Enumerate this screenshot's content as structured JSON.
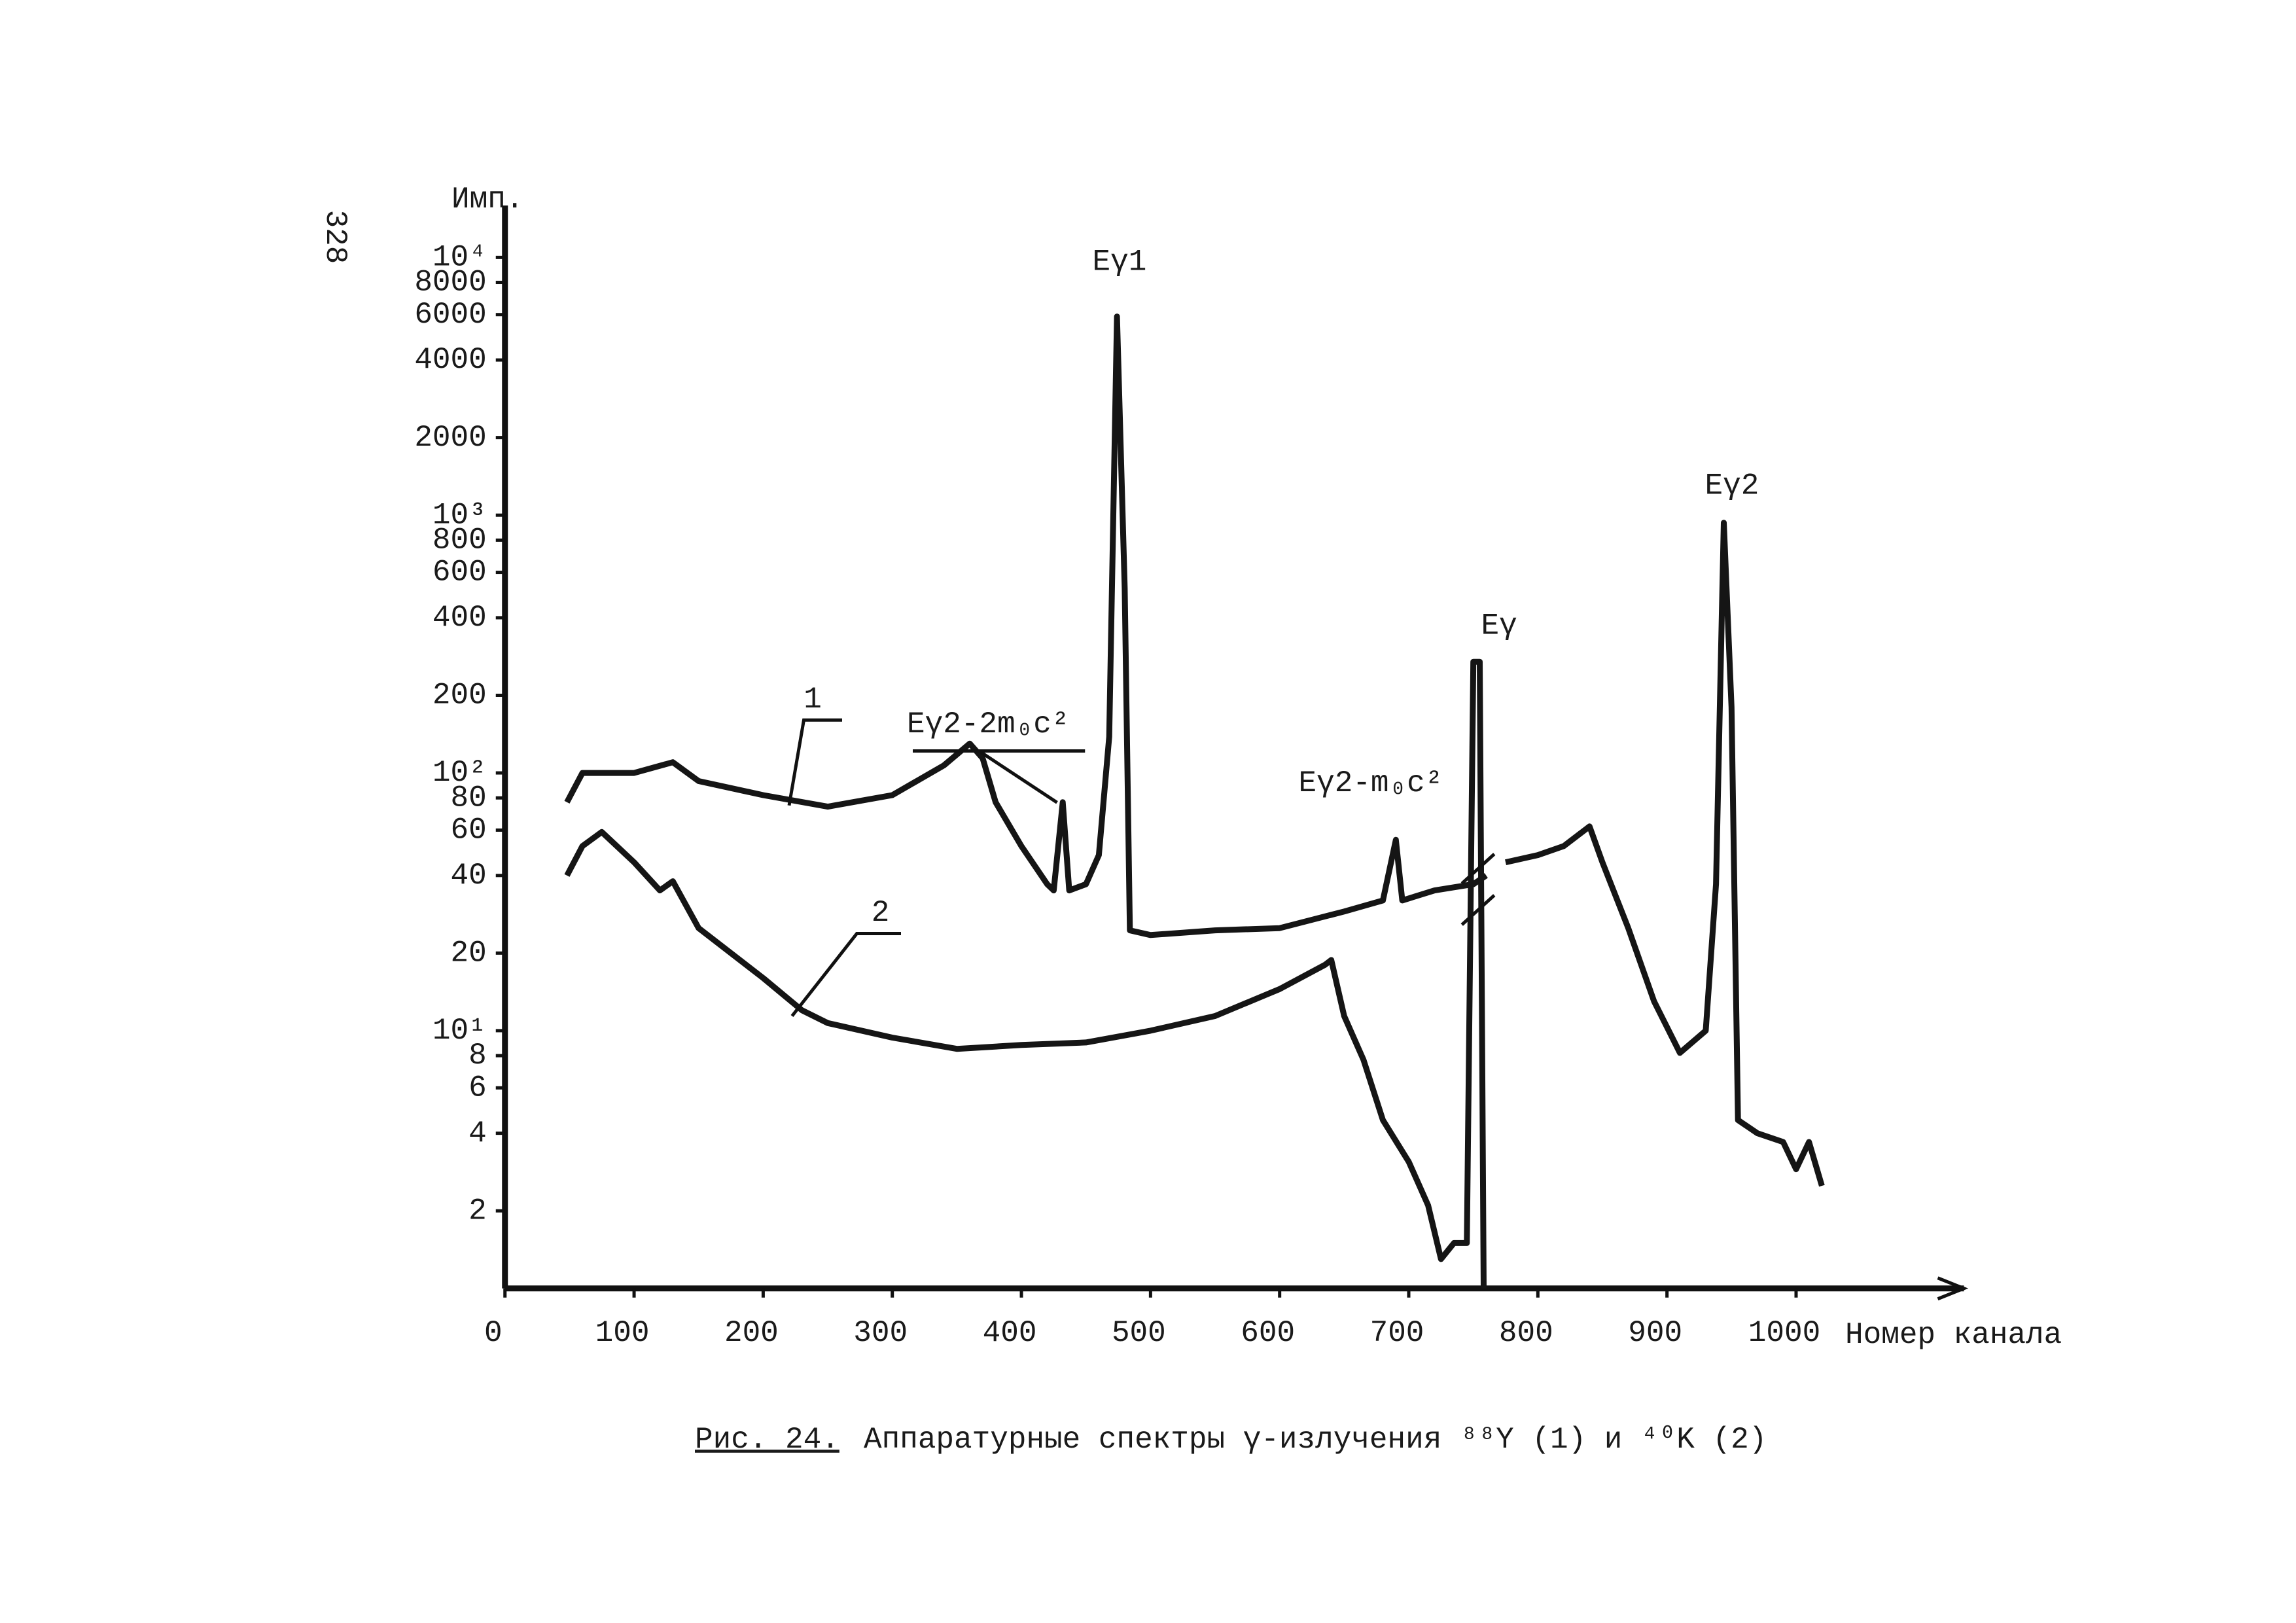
{
  "page_number": "328",
  "chart_data": {
    "type": "line",
    "y_label": "Имп.",
    "x_label": "Номер канала",
    "figure_label": "Рис. 24.",
    "caption": "Аппаратурные спектры γ-излучения ⁸⁸Y (1) и ⁴⁰K (2)",
    "log_y": true,
    "grid": false,
    "xlim": [
      0,
      1130
    ],
    "ylim": [
      1,
      15000
    ],
    "xticks": [
      0,
      100,
      200,
      300,
      400,
      500,
      600,
      700,
      800,
      900,
      1000
    ],
    "yticks": [
      2,
      4,
      6,
      8,
      {
        "value": 10,
        "label": "10¹"
      },
      20,
      40,
      60,
      80,
      {
        "value": 100,
        "label": "10²"
      },
      200,
      400,
      600,
      800,
      {
        "value": 1000,
        "label": "10³"
      },
      2000,
      4000,
      6000,
      8000,
      {
        "value": 10000,
        "label": "10⁴"
      }
    ],
    "annotations": [
      "Eγ1",
      "Eγ2-2m₀c²",
      "Eγ2-m₀c²",
      "Eγ",
      "Eγ2"
    ],
    "series": [
      {
        "name": "1",
        "color": "#151515",
        "x": [
          48,
          60,
          100,
          130,
          150,
          200,
          250,
          300,
          340,
          360,
          370,
          380,
          400,
          420,
          425,
          432,
          437,
          450,
          460,
          468,
          474,
          480,
          484,
          500,
          550,
          600,
          650,
          680,
          690,
          695,
          720,
          750,
          760,
          768,
          775,
          800,
          820,
          840,
          850,
          870,
          890,
          910,
          930,
          938,
          944,
          950,
          955,
          970,
          990,
          1000,
          1010,
          1020
        ],
        "values": [
          77,
          100,
          100,
          110,
          93,
          82,
          74,
          82,
          107,
          130,
          114,
          77,
          52,
          37,
          35,
          77,
          35,
          37,
          48,
          138,
          5900,
          520,
          24.5,
          23.5,
          24.5,
          25,
          29,
          32,
          55,
          32,
          35,
          37,
          40,
          null,
          45,
          48,
          52,
          62,
          45,
          25,
          13,
          8.2,
          10,
          37,
          935,
          180,
          4.5,
          4.0,
          3.7,
          2.9,
          3.7,
          2.5
        ]
      },
      {
        "name": "2",
        "color": "#151515",
        "x": [
          48,
          60,
          75,
          100,
          120,
          130,
          150,
          200,
          230,
          250,
          300,
          350,
          400,
          450,
          500,
          550,
          600,
          635,
          640,
          650,
          665,
          680,
          700,
          715,
          725,
          735,
          745,
          750,
          755,
          758
        ],
        "values": [
          40,
          52,
          59,
          45,
          35,
          38,
          25,
          16,
          12,
          10.7,
          9.4,
          8.5,
          8.8,
          9,
          10,
          11.4,
          14.5,
          18,
          18.8,
          11.4,
          7.7,
          4.5,
          3.1,
          2.1,
          1.3,
          1.5,
          1.5,
          270,
          270,
          1
        ]
      }
    ]
  }
}
